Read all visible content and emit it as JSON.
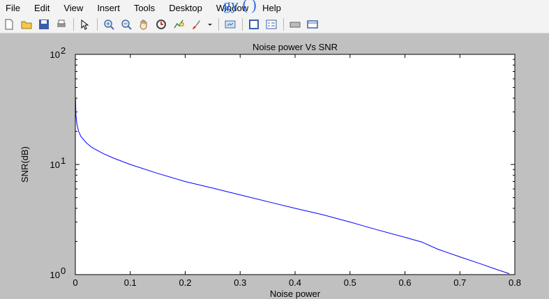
{
  "menu": [
    "File",
    "Edit",
    "View",
    "Insert",
    "Tools",
    "Desktop",
    "Window",
    "Help"
  ],
  "overlay_text": "gy (        )",
  "toolbar_icons": [
    "new-figure-icon",
    "open-file-icon",
    "save-icon",
    "print-icon",
    "sep",
    "edit-plot-arrow-icon",
    "sep",
    "zoom-in-icon",
    "zoom-out-icon",
    "pan-hand-icon",
    "rotate-3d-icon",
    "data-cursor-icon",
    "brush-icon",
    "dropdown-arrow-icon",
    "sep",
    "link-plot-icon",
    "sep",
    "colorbar-icon",
    "legend-icon",
    "sep",
    "hide-plot-tools-icon",
    "show-plot-tools-icon"
  ],
  "colors": {
    "line": "#0000ff",
    "figure_bg": "#c0c0c0",
    "axes_bg": "#ffffff"
  },
  "chart_data": {
    "type": "line",
    "title": "Noise power Vs SNR",
    "xlabel": "Noise power",
    "ylabel": "SNR(dB)",
    "xlim": [
      0,
      0.8
    ],
    "ylim": [
      1,
      100
    ],
    "yscale": "log",
    "grid": false,
    "xticks": [
      "0",
      "0.1",
      "0.2",
      "0.3",
      "0.4",
      "0.5",
      "0.6",
      "0.7",
      "0.8"
    ],
    "yticks": [
      {
        "base": "10",
        "exp": "0"
      },
      {
        "base": "10",
        "exp": "1"
      },
      {
        "base": "10",
        "exp": "2"
      }
    ],
    "series": [
      {
        "x": [
          0.0005,
          0.001,
          0.003,
          0.006,
          0.01,
          0.02,
          0.03,
          0.05,
          0.07,
          0.1,
          0.15,
          0.2,
          0.25,
          0.3,
          0.35,
          0.4,
          0.45,
          0.5,
          0.55,
          0.6,
          0.63,
          0.66,
          0.7,
          0.74,
          0.77,
          0.79
        ],
        "y": [
          40,
          28,
          23,
          20,
          18,
          15.7,
          14.3,
          12.6,
          11.4,
          10.0,
          8.3,
          7.0,
          6.1,
          5.3,
          4.6,
          4.0,
          3.5,
          3.0,
          2.55,
          2.18,
          1.98,
          1.7,
          1.45,
          1.24,
          1.1,
          1.02
        ]
      }
    ]
  }
}
